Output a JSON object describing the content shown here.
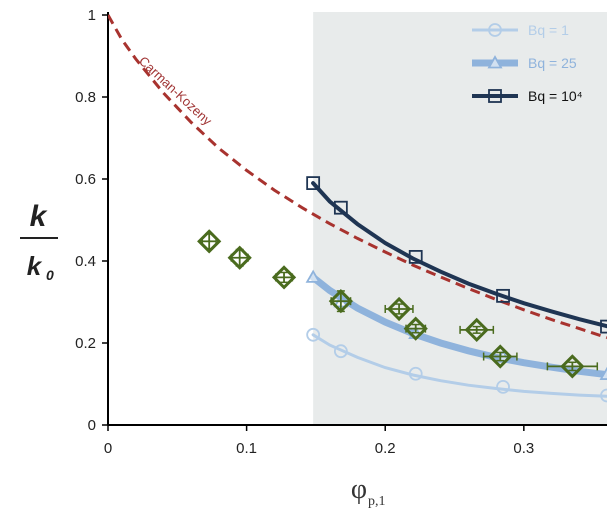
{
  "chart_data": {
    "type": "scatter",
    "xlabel": "φ",
    "xlabel_sub": "p,1",
    "ylabel_num": "k",
    "ylabel_den": "k",
    "ylabel_den_sub": "0",
    "xlim": [
      0,
      0.36
    ],
    "ylim": [
      0,
      1
    ],
    "x_ticks": [
      0,
      0.1,
      0.2,
      0.3
    ],
    "x_tick_labels": [
      "0",
      "0.1",
      "0.2",
      "0.3"
    ],
    "y_ticks": [
      0,
      0.2,
      0.4,
      0.6,
      0.8,
      1
    ],
    "y_tick_labels": [
      "0",
      "0.2",
      "0.4",
      "0.6",
      "0.8",
      "1"
    ],
    "shaded_region": {
      "x_from": 0.148,
      "x_to": 0.36,
      "color": "#e8ebeb"
    },
    "legend_position": "top-right",
    "carman_kozeny": {
      "label": "Carman-Kozeny",
      "color": "#a8332f",
      "x": [
        0,
        0.01,
        0.02,
        0.04,
        0.06,
        0.08,
        0.1,
        0.12,
        0.14,
        0.16,
        0.18,
        0.2,
        0.22,
        0.24,
        0.26,
        0.28,
        0.3,
        0.32,
        0.34,
        0.36
      ],
      "y": [
        1.0,
        0.94,
        0.893,
        0.81,
        0.738,
        0.675,
        0.621,
        0.573,
        0.53,
        0.491,
        0.455,
        0.422,
        0.39,
        0.361,
        0.333,
        0.306,
        0.281,
        0.257,
        0.235,
        0.213
      ]
    },
    "series": [
      {
        "name": "Bq = 1",
        "color": "#b3cde8",
        "marker": "circle",
        "line_width": 3,
        "curve_x": [
          0.148,
          0.16,
          0.18,
          0.2,
          0.22,
          0.24,
          0.26,
          0.28,
          0.3,
          0.32,
          0.34,
          0.36
        ],
        "curve_y": [
          0.22,
          0.195,
          0.165,
          0.14,
          0.122,
          0.108,
          0.097,
          0.089,
          0.082,
          0.077,
          0.073,
          0.07
        ],
        "markers_x": [
          0.148,
          0.168,
          0.222,
          0.285,
          0.36
        ],
        "markers_y": [
          0.22,
          0.18,
          0.125,
          0.093,
          0.072
        ]
      },
      {
        "name": "Bq = 25",
        "color": "#8fb3dc",
        "marker": "triangle",
        "line_width": 7,
        "curve_x": [
          0.148,
          0.16,
          0.18,
          0.2,
          0.22,
          0.24,
          0.26,
          0.28,
          0.3,
          0.32,
          0.34,
          0.36
        ],
        "curve_y": [
          0.36,
          0.328,
          0.285,
          0.251,
          0.223,
          0.2,
          0.181,
          0.165,
          0.152,
          0.141,
          0.131,
          0.123
        ],
        "markers_x": [
          0.148,
          0.168,
          0.222,
          0.285,
          0.36
        ],
        "markers_y": [
          0.36,
          0.3,
          0.223,
          0.165,
          0.123
        ]
      },
      {
        "name": "Bq = 10⁴",
        "color": "#1f3553",
        "marker": "square",
        "line_width": 4,
        "curve_x": [
          0.148,
          0.16,
          0.18,
          0.2,
          0.22,
          0.24,
          0.26,
          0.28,
          0.3,
          0.32,
          0.34,
          0.36
        ],
        "curve_y": [
          0.59,
          0.545,
          0.49,
          0.444,
          0.406,
          0.374,
          0.345,
          0.32,
          0.297,
          0.277,
          0.258,
          0.241
        ],
        "markers_x": [
          0.148,
          0.168,
          0.222,
          0.285,
          0.36
        ],
        "markers_y": [
          0.59,
          0.53,
          0.41,
          0.315,
          0.24
        ]
      }
    ],
    "experiments": {
      "color": "#4a6b1e",
      "marker": "diamond",
      "x": [
        0.073,
        0.095,
        0.127,
        0.168,
        0.21,
        0.222,
        0.266,
        0.283,
        0.335
      ],
      "y": [
        0.448,
        0.408,
        0.36,
        0.302,
        0.283,
        0.235,
        0.232,
        0.167,
        0.143
      ],
      "x_err": [
        0.005,
        0.006,
        0.006,
        0.007,
        0.01,
        0.007,
        0.012,
        0.012,
        0.018
      ],
      "y_err": [
        0.018,
        0.02,
        0.012,
        0.025,
        0.012,
        0.01,
        0.008,
        0.01,
        0.01
      ]
    }
  }
}
